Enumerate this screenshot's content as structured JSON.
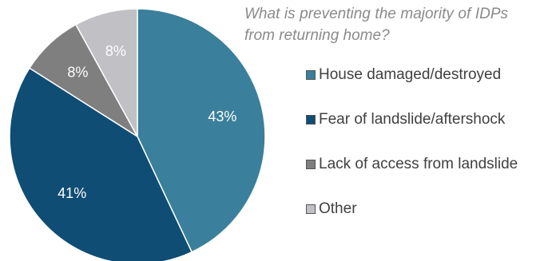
{
  "chart_data": {
    "type": "pie",
    "title": "What is preventing the majority of IDPs from returning home?",
    "categories": [
      "House damaged/destroyed",
      "Fear of landslide/aftershock",
      "Lack of access from landslide",
      "Other"
    ],
    "values": [
      43,
      41,
      8,
      8
    ],
    "labels": [
      "43%",
      "41%",
      "8%",
      "8%"
    ],
    "colors": [
      "#3a7f9b",
      "#0f4d74",
      "#7f7f7f",
      "#c0c0c5"
    ],
    "label_colors": [
      "#ffffff",
      "#ffffff",
      "#ffffff",
      "#ffffff"
    ],
    "start_angle_deg": 0,
    "direction": "clockwise",
    "legend_placement": "right"
  }
}
